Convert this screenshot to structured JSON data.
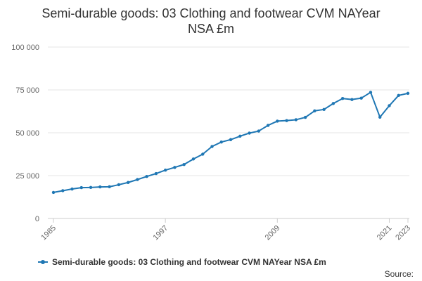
{
  "chart_data": {
    "type": "line",
    "title_lines": [
      "Semi-durable goods: 03 Clothing and footwear CVM NAYear",
      "NSA £m"
    ],
    "xlabel": "",
    "ylabel": "",
    "ylim": [
      0,
      100000
    ],
    "yticks": [
      0,
      25000,
      50000,
      75000,
      100000
    ],
    "ytick_labels": [
      "0",
      "25 000",
      "50 000",
      "75 000",
      "100 000"
    ],
    "xticks": [
      1985,
      1997,
      2009,
      2021,
      2023
    ],
    "xtick_labels": [
      "1985",
      "1997",
      "2009",
      "2021",
      "2023"
    ],
    "grid": true,
    "legend_position": "bottom",
    "series": [
      {
        "name": "Semi-durable goods: 03 Clothing and footwear CVM NAYear NSA £m",
        "color": "#1f77b4",
        "x": [
          1985,
          1986,
          1987,
          1988,
          1989,
          1990,
          1991,
          1992,
          1993,
          1994,
          1995,
          1996,
          1997,
          1998,
          1999,
          2000,
          2001,
          2002,
          2003,
          2004,
          2005,
          2006,
          2007,
          2008,
          2009,
          2010,
          2011,
          2012,
          2013,
          2014,
          2015,
          2016,
          2017,
          2018,
          2019,
          2020,
          2021,
          2022,
          2023
        ],
        "values": [
          15200,
          16200,
          17200,
          18000,
          18100,
          18400,
          18500,
          19700,
          21000,
          22700,
          24500,
          26200,
          28200,
          29800,
          31500,
          34700,
          37500,
          42000,
          44600,
          46000,
          48000,
          49800,
          51000,
          54300,
          56800,
          57100,
          57600,
          59000,
          62800,
          63600,
          67100,
          70000,
          69400,
          70200,
          73600,
          59100,
          65800,
          71800,
          73000
        ]
      }
    ]
  },
  "legend": {
    "label": "Semi-durable goods: 03 Clothing and footwear CVM NAYear NSA £m"
  },
  "source": {
    "label": "Source:"
  }
}
